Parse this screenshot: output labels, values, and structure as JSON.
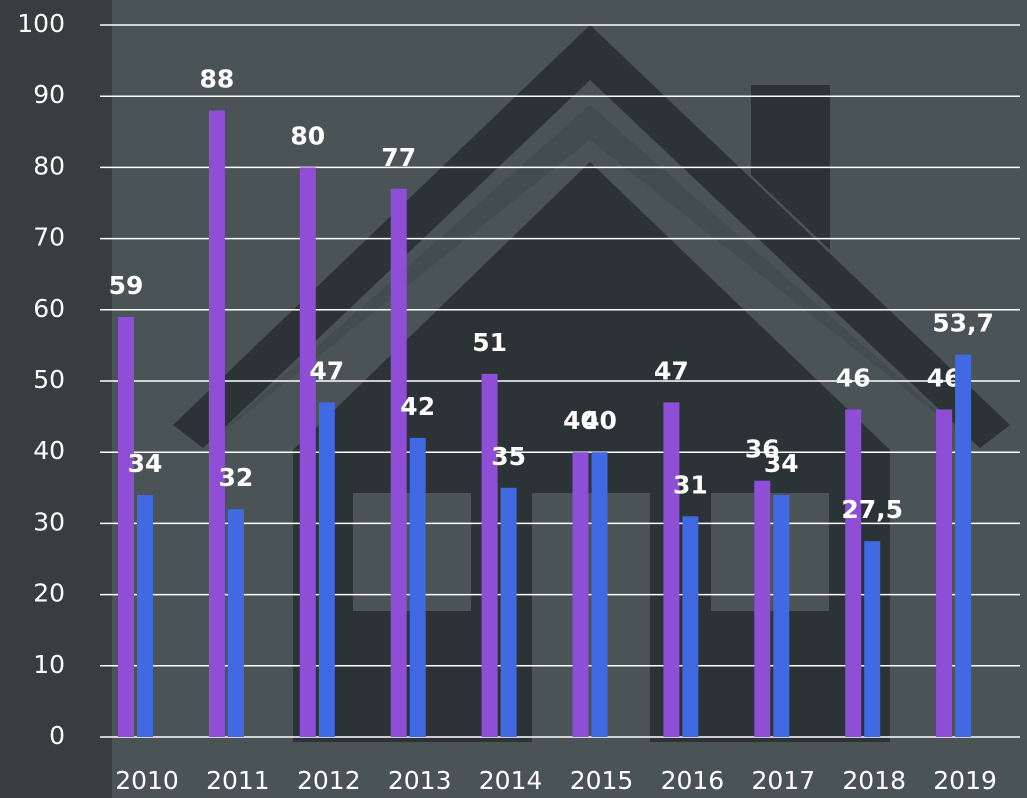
{
  "chart_data": {
    "type": "bar",
    "categories": [
      "2010",
      "2011",
      "2012",
      "2013",
      "2014",
      "2015",
      "2016",
      "2017",
      "2018",
      "2019"
    ],
    "series": [
      {
        "color": "#8e4fd6",
        "values": [
          59,
          88,
          80,
          77,
          51,
          40,
          47,
          36,
          46,
          46
        ]
      },
      {
        "color": "#4169e1",
        "values": [
          34,
          32,
          47,
          42,
          35,
          40,
          31,
          34,
          27.5,
          53.7
        ],
        "value_labels": [
          "34",
          "32",
          "47",
          "42",
          "35",
          "40",
          "31",
          "34",
          "27,5",
          "53,7"
        ]
      }
    ],
    "ylim": [
      0,
      100
    ],
    "yticks": [
      0,
      10,
      20,
      30,
      40,
      50,
      60,
      70,
      80,
      90,
      100
    ],
    "grid": true
  }
}
